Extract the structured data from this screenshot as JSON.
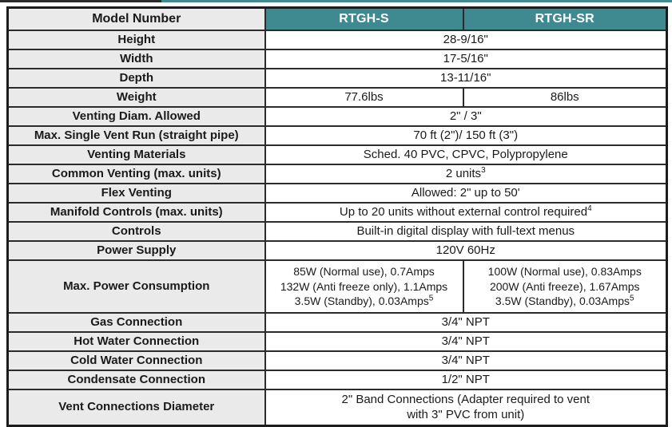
{
  "colors": {
    "header_teal": "#3F8A90",
    "label_bg": "#EAEAEB",
    "border_dark": "#2B2B2B",
    "header_divider": "#DDE9EA"
  },
  "header": {
    "model_label": "Model Number",
    "col_s": "RTGH-S",
    "col_sr": "RTGH-SR"
  },
  "rows": [
    {
      "label": "Height",
      "value": "28-9/16\""
    },
    {
      "label": "Width",
      "value": "17-5/16\""
    },
    {
      "label": "Depth",
      "value": "13-11/16\""
    },
    {
      "label": "Weight",
      "value_s": "77.6lbs",
      "value_sr": "86lbs"
    },
    {
      "label": "Venting Diam. Allowed",
      "value": "2\" / 3\""
    },
    {
      "label": "Max. Single Vent Run (straight pipe)",
      "value": "70 ft (2\")/ 150 ft (3\")"
    },
    {
      "label": "Venting Materials",
      "value": "Sched. 40 PVC, CPVC, Polypropylene"
    },
    {
      "label": "Common Venting (max. units)",
      "value": "2 units",
      "sup": "3"
    },
    {
      "label": "Flex Venting",
      "value": "Allowed: 2\" up to 50'"
    },
    {
      "label": "Manifold Controls (max. units)",
      "value": "Up to 20 units without external control required",
      "sup": "4"
    },
    {
      "label": "Controls",
      "value": "Built-in digital display with full-text menus"
    },
    {
      "label": "Power Supply",
      "value": "120V 60Hz"
    },
    {
      "label": "Max. Power Consumption",
      "s_line1": "85W (Normal use), 0.7Amps",
      "s_line2": "132W (Anti freeze only), 1.1Amps",
      "s_line3": "3.5W (Standby), 0.03Amps",
      "s_line3_sup": "5",
      "sr_line1": "100W (Normal use), 0.83Amps",
      "sr_line2": "200W (Anti freeze), 1.67Amps",
      "sr_line3": "3.5W (Standby), 0.03Amps",
      "sr_line3_sup": "5"
    },
    {
      "label": "Gas Connection",
      "value": "3/4\" NPT"
    },
    {
      "label": "Hot Water Connection",
      "value": "3/4\" NPT"
    },
    {
      "label": "Cold Water Connection",
      "value": "3/4\" NPT"
    },
    {
      "label": "Condensate Connection",
      "value": "1/2\" NPT"
    },
    {
      "label": "Vent Connections Diameter",
      "line1": "2\" Band Connections (Adapter required to vent",
      "line2": "with 3\" PVC from unit)"
    }
  ]
}
